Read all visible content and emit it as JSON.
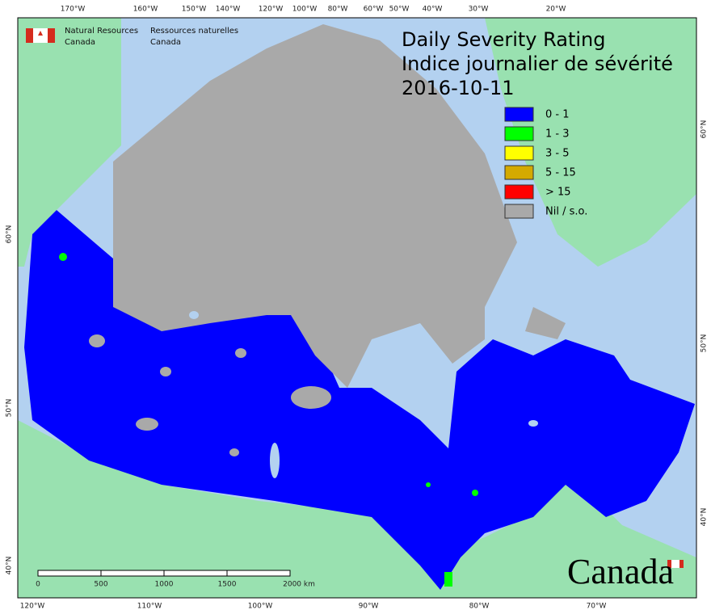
{
  "agency": {
    "english": [
      "Natural Resources",
      "Canada"
    ],
    "french": [
      "Ressources naturelles",
      "Canada"
    ]
  },
  "title": [
    "Daily Severity Rating",
    "Indice journalier de sévérité",
    "2016-10-11"
  ],
  "legend": [
    {
      "label": "0 - 1",
      "color": "#0000ff"
    },
    {
      "label": "1 - 3",
      "color": "#00ff00"
    },
    {
      "label": "3 - 5",
      "color": "#ffff00"
    },
    {
      "label": "5 - 15",
      "color": "#d4aa00"
    },
    {
      "label": "> 15",
      "color": "#ff0000"
    },
    {
      "label": "Nil / s.o.",
      "color": "#a9a9a9"
    }
  ],
  "graticule": {
    "top": [
      "170°W",
      "160°W",
      "150°W",
      "140°W",
      "120°W",
      "100°W",
      "80°W",
      "60°W",
      "50°W",
      "40°W",
      "30°W",
      "20°W"
    ],
    "bottom": [
      "120°W",
      "110°W",
      "100°W",
      "90°W",
      "80°W",
      "70°W"
    ],
    "left": [
      "60°N",
      "50°N",
      "40°N"
    ],
    "right": [
      "60°N",
      "50°N",
      "40°N"
    ]
  },
  "scale_bar": [
    "0",
    "500",
    "1000",
    "1500",
    "2000 km"
  ],
  "wordmark": "Canada"
}
